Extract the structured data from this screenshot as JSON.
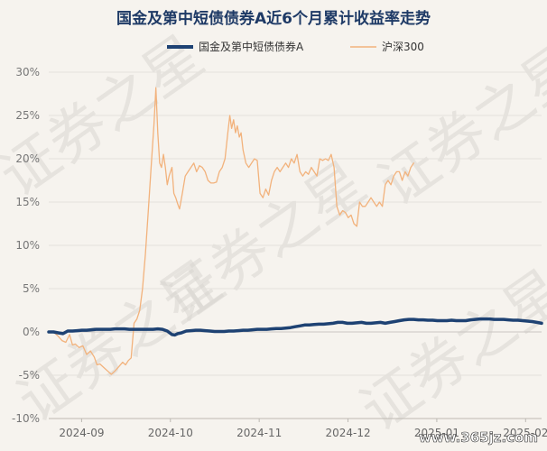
{
  "chart_data": {
    "type": "line",
    "title": "国金及第中短债债券A近6个月累计收益率走势",
    "legend": {
      "position": "top"
    },
    "y_ticks": [
      "30%",
      "25%",
      "20%",
      "15%",
      "10%",
      "5%",
      "0%",
      "-5%",
      "-10%"
    ],
    "ylim": [
      -10,
      30
    ],
    "x_ticks": [
      "2024-09",
      "2024-10",
      "2024-11",
      "2024-12",
      "2025-01",
      "2025-02"
    ],
    "grid": "horizontal",
    "series": [
      {
        "name": "国金及第中短债债券A",
        "color": "#1e4273",
        "values": [
          [
            0,
            0.0
          ],
          [
            5,
            0.0
          ],
          [
            10,
            -0.1
          ],
          [
            15,
            -0.2
          ],
          [
            20,
            0.1
          ],
          [
            25,
            0.1
          ],
          [
            30,
            0.15
          ],
          [
            35,
            0.2
          ],
          [
            40,
            0.2
          ],
          [
            45,
            0.25
          ],
          [
            50,
            0.3
          ],
          [
            55,
            0.3
          ],
          [
            60,
            0.3
          ],
          [
            65,
            0.3
          ],
          [
            70,
            0.35
          ],
          [
            75,
            0.35
          ],
          [
            80,
            0.35
          ],
          [
            85,
            0.3
          ],
          [
            90,
            0.3
          ],
          [
            95,
            0.3
          ],
          [
            100,
            0.3
          ],
          [
            105,
            0.3
          ],
          [
            110,
            0.3
          ],
          [
            115,
            0.35
          ],
          [
            120,
            0.3
          ],
          [
            125,
            0.1
          ],
          [
            130,
            -0.3
          ],
          [
            133,
            -0.35
          ],
          [
            136,
            -0.2
          ],
          [
            140,
            -0.1
          ],
          [
            145,
            0.1
          ],
          [
            150,
            0.15
          ],
          [
            155,
            0.2
          ],
          [
            160,
            0.2
          ],
          [
            165,
            0.15
          ],
          [
            170,
            0.1
          ],
          [
            175,
            0.05
          ],
          [
            180,
            0.05
          ],
          [
            185,
            0.05
          ],
          [
            190,
            0.1
          ],
          [
            195,
            0.1
          ],
          [
            200,
            0.15
          ],
          [
            205,
            0.2
          ],
          [
            210,
            0.2
          ],
          [
            215,
            0.25
          ],
          [
            220,
            0.3
          ],
          [
            225,
            0.3
          ],
          [
            230,
            0.3
          ],
          [
            235,
            0.35
          ],
          [
            240,
            0.4
          ],
          [
            245,
            0.4
          ],
          [
            250,
            0.45
          ],
          [
            255,
            0.5
          ],
          [
            260,
            0.6
          ],
          [
            265,
            0.7
          ],
          [
            270,
            0.8
          ],
          [
            275,
            0.8
          ],
          [
            280,
            0.85
          ],
          [
            285,
            0.9
          ],
          [
            290,
            0.9
          ],
          [
            295,
            0.95
          ],
          [
            300,
            1.0
          ],
          [
            305,
            1.1
          ],
          [
            310,
            1.1
          ],
          [
            315,
            1.0
          ],
          [
            320,
            1.0
          ],
          [
            325,
            1.05
          ],
          [
            330,
            1.1
          ],
          [
            335,
            1.0
          ],
          [
            340,
            1.0
          ],
          [
            345,
            1.05
          ],
          [
            350,
            1.1
          ],
          [
            355,
            1.0
          ],
          [
            360,
            1.1
          ],
          [
            365,
            1.2
          ],
          [
            370,
            1.3
          ],
          [
            375,
            1.4
          ],
          [
            380,
            1.45
          ],
          [
            385,
            1.45
          ],
          [
            390,
            1.4
          ],
          [
            395,
            1.4
          ],
          [
            400,
            1.35
          ],
          [
            405,
            1.35
          ],
          [
            410,
            1.3
          ],
          [
            415,
            1.3
          ],
          [
            420,
            1.3
          ],
          [
            425,
            1.35
          ],
          [
            430,
            1.3
          ],
          [
            435,
            1.3
          ],
          [
            440,
            1.3
          ],
          [
            445,
            1.4
          ],
          [
            450,
            1.45
          ],
          [
            455,
            1.5
          ],
          [
            460,
            1.5
          ],
          [
            465,
            1.5
          ],
          [
            470,
            1.45
          ],
          [
            475,
            1.45
          ],
          [
            480,
            1.45
          ],
          [
            485,
            1.4
          ],
          [
            490,
            1.35
          ],
          [
            495,
            1.35
          ],
          [
            500,
            1.3
          ],
          [
            505,
            1.25
          ],
          [
            510,
            1.2
          ],
          [
            515,
            1.1
          ],
          [
            520,
            1.0
          ]
        ]
      },
      {
        "name": "沪深300",
        "color": "#f2b27c",
        "values": [
          [
            0,
            0.0
          ],
          [
            5,
            0.0
          ],
          [
            10,
            -0.5
          ],
          [
            14,
            -1.0
          ],
          [
            18,
            -1.2
          ],
          [
            22,
            -0.3
          ],
          [
            25,
            -1.5
          ],
          [
            28,
            -1.4
          ],
          [
            32,
            -1.8
          ],
          [
            36,
            -1.6
          ],
          [
            40,
            -2.6
          ],
          [
            44,
            -2.2
          ],
          [
            48,
            -2.9
          ],
          [
            51,
            -3.8
          ],
          [
            54,
            -3.7
          ],
          [
            58,
            -4.1
          ],
          [
            62,
            -4.5
          ],
          [
            66,
            -4.9
          ],
          [
            70,
            -4.5
          ],
          [
            74,
            -4.0
          ],
          [
            78,
            -3.5
          ],
          [
            81,
            -3.8
          ],
          [
            84,
            -3.3
          ],
          [
            87,
            -3.0
          ],
          [
            90,
            1.0
          ],
          [
            93,
            1.5
          ],
          [
            96,
            2.5
          ],
          [
            99,
            5.0
          ],
          [
            102,
            9.0
          ],
          [
            105,
            14.0
          ],
          [
            108,
            19.0
          ],
          [
            111,
            24.0
          ],
          [
            113,
            28.2
          ],
          [
            115,
            23.0
          ],
          [
            117,
            19.5
          ],
          [
            119,
            19.0
          ],
          [
            121,
            20.5
          ],
          [
            123,
            19.0
          ],
          [
            125,
            17.0
          ],
          [
            127,
            18.0
          ],
          [
            130,
            19.0
          ],
          [
            132,
            16.0
          ],
          [
            134,
            15.5
          ],
          [
            136,
            14.8
          ],
          [
            138,
            14.2
          ],
          [
            141,
            16.0
          ],
          [
            144,
            18.0
          ],
          [
            147,
            18.5
          ],
          [
            150,
            19.0
          ],
          [
            153,
            19.5
          ],
          [
            156,
            18.5
          ],
          [
            159,
            19.2
          ],
          [
            162,
            19.0
          ],
          [
            165,
            18.5
          ],
          [
            168,
            17.5
          ],
          [
            171,
            17.2
          ],
          [
            174,
            17.2
          ],
          [
            177,
            17.3
          ],
          [
            180,
            18.5
          ],
          [
            183,
            19.0
          ],
          [
            186,
            20.0
          ],
          [
            189,
            23.0
          ],
          [
            191,
            25.0
          ],
          [
            193,
            23.5
          ],
          [
            195,
            24.5
          ],
          [
            197,
            23.0
          ],
          [
            199,
            23.8
          ],
          [
            201,
            22.5
          ],
          [
            203,
            23.0
          ],
          [
            205,
            21.0
          ],
          [
            208,
            19.5
          ],
          [
            211,
            19.0
          ],
          [
            214,
            19.5
          ],
          [
            217,
            20.0
          ],
          [
            220,
            19.8
          ],
          [
            223,
            16.0
          ],
          [
            226,
            15.5
          ],
          [
            229,
            16.5
          ],
          [
            232,
            15.8
          ],
          [
            235,
            17.5
          ],
          [
            238,
            18.5
          ],
          [
            241,
            19.0
          ],
          [
            244,
            18.5
          ],
          [
            247,
            19.0
          ],
          [
            250,
            19.5
          ],
          [
            253,
            19.0
          ],
          [
            256,
            20.0
          ],
          [
            259,
            19.5
          ],
          [
            262,
            20.5
          ],
          [
            265,
            18.5
          ],
          [
            268,
            18.0
          ],
          [
            271,
            18.5
          ],
          [
            274,
            18.2
          ],
          [
            277,
            19.0
          ],
          [
            280,
            18.5
          ],
          [
            283,
            18.0
          ],
          [
            286,
            20.0
          ],
          [
            289,
            19.8
          ],
          [
            292,
            20.0
          ],
          [
            295,
            19.8
          ],
          [
            298,
            20.5
          ],
          [
            301,
            19.0
          ],
          [
            304,
            14.5
          ],
          [
            307,
            13.5
          ],
          [
            310,
            14.0
          ],
          [
            313,
            13.8
          ],
          [
            316,
            13.2
          ],
          [
            319,
            13.5
          ],
          [
            322,
            12.5
          ],
          [
            325,
            12.2
          ],
          [
            328,
            15.0
          ],
          [
            331,
            14.5
          ],
          [
            334,
            14.5
          ],
          [
            337,
            15.0
          ],
          [
            340,
            15.5
          ],
          [
            343,
            15.0
          ],
          [
            346,
            14.5
          ],
          [
            349,
            15.0
          ],
          [
            352,
            14.5
          ],
          [
            355,
            17.0
          ],
          [
            358,
            17.5
          ],
          [
            361,
            17.0
          ],
          [
            364,
            18.0
          ],
          [
            367,
            18.5
          ],
          [
            370,
            18.5
          ],
          [
            373,
            17.5
          ],
          [
            376,
            18.5
          ],
          [
            379,
            18.0
          ],
          [
            382,
            19.0
          ],
          [
            385,
            19.5
          ]
        ]
      }
    ],
    "x_range": [
      0,
      520
    ],
    "hs300_x_span": [
      0,
      385
    ]
  },
  "watermark": {
    "text": "证券之星"
  },
  "site_label": "www.365jz.com"
}
